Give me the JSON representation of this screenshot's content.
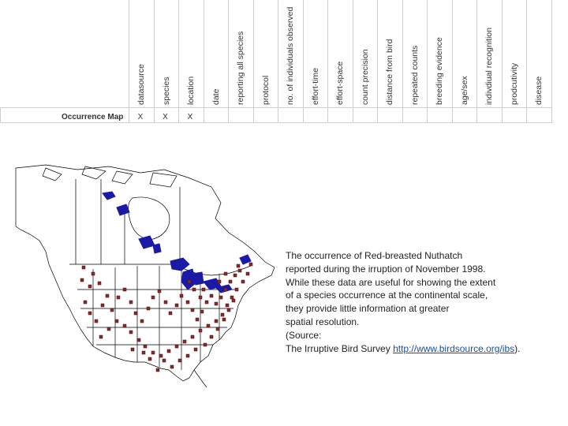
{
  "table": {
    "columns": [
      "datasource",
      "species",
      "location",
      "date",
      "reporting all species",
      "protocol",
      "no. of individuals observed",
      "effort-time",
      "effort-space",
      "count precision",
      "distance from bird",
      "repeated counts",
      "breeding evidence",
      "age/sex",
      "indivdiual recognition",
      "prodcutivity",
      "disease"
    ],
    "row": {
      "label": "Occurrence Map",
      "marks": [
        "X",
        "X",
        "X",
        "",
        "",
        "",
        "",
        "",
        "",
        "",
        "",
        "",
        "",
        "",
        "",
        "",
        ""
      ]
    }
  },
  "map": {
    "colors": {
      "water": "#1a1aa6",
      "occurrence": "#8b2a2a",
      "outline": "#000000"
    }
  },
  "caption": {
    "lines": [
      "The occurrence of Red-breasted Nuthatch",
      "reported during the irruption of November 1998.",
      "While these data are useful for showing the extent",
      "of a species occurrence at the continental scale,",
      "they provide little information at greater",
      "spatial resolution.",
      "(Source:"
    ],
    "source_prefix": "The Irruptive Bird Survey ",
    "source_link": "http://www.birdsource.org/ibs",
    "source_suffix": ")."
  }
}
